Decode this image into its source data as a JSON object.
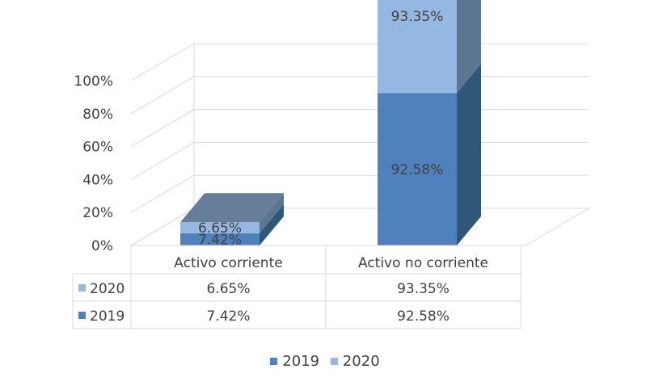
{
  "chart_data": {
    "type": "bar",
    "stacked": true,
    "normalized": true,
    "three_d": true,
    "categories": [
      "Activo corriente",
      "Activo no corriente"
    ],
    "series": [
      {
        "name": "2019",
        "values": [
          7.42,
          92.58
        ],
        "labels": [
          "7.42%",
          "92.58%"
        ],
        "color": "#4f81bd",
        "side_color": "#2e5778",
        "top_color": "#3f6a97"
      },
      {
        "name": "2020",
        "values": [
          6.65,
          93.35
        ],
        "labels": [
          "6.65%",
          "93.35%"
        ],
        "color": "#95b8e3",
        "side_color": "#5c7591",
        "top_color": "#677e9b"
      }
    ],
    "y_ticks": [
      "0%",
      "20%",
      "40%",
      "60%",
      "80%",
      "100%"
    ],
    "ylim": [
      0,
      100
    ],
    "grid": true,
    "data_table": true,
    "table_rows": [
      {
        "series": "2020",
        "cells": [
          "6.65%",
          "93.35%"
        ]
      },
      {
        "series": "2019",
        "cells": [
          "7.42%",
          "92.58%"
        ]
      }
    ],
    "legend": {
      "position": "bottom",
      "items": [
        "2019",
        "2020"
      ]
    }
  }
}
